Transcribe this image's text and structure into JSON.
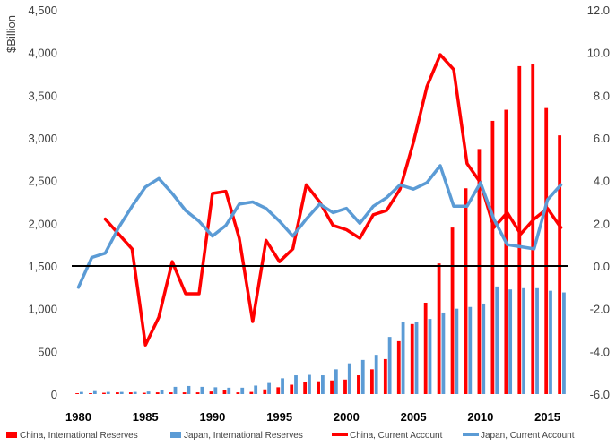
{
  "chart_data": {
    "type": "bar+line",
    "ylabel": "$Billion",
    "y_left_ticks": [
      "0",
      "500",
      "1,000",
      "1,500",
      "2,000",
      "2,500",
      "3,000",
      "3,500",
      "4,000",
      "4,500"
    ],
    "y_right_ticks": [
      "-6.0",
      "-4.0",
      "-2.0",
      "0.0",
      "2.0",
      "4.0",
      "6.0",
      "8.0",
      "10.0",
      "12.0"
    ],
    "x_ticks": [
      "1980",
      "1985",
      "1990",
      "1995",
      "2000",
      "2005",
      "2010",
      "2015"
    ],
    "ylim_left": [
      0,
      4500
    ],
    "ylim_right": [
      -6,
      12
    ],
    "xlim": [
      1979.5,
      2016.5
    ],
    "legend_position": "bottom",
    "colors": {
      "china": "#ff0000",
      "japan": "#5b9bd5",
      "zero_line": "#000000"
    },
    "years": [
      1980,
      1981,
      1982,
      1983,
      1984,
      1985,
      1986,
      1987,
      1988,
      1989,
      1990,
      1991,
      1992,
      1993,
      1994,
      1995,
      1996,
      1997,
      1998,
      1999,
      2000,
      2001,
      2002,
      2003,
      2004,
      2005,
      2006,
      2007,
      2008,
      2009,
      2010,
      2011,
      2012,
      2013,
      2014,
      2015,
      2016
    ],
    "bar_series": [
      {
        "name": "China, International Reserves",
        "axis": "left",
        "values": [
          10,
          10,
          15,
          20,
          20,
          15,
          20,
          20,
          20,
          20,
          30,
          45,
          20,
          25,
          55,
          80,
          110,
          145,
          150,
          160,
          170,
          220,
          290,
          410,
          620,
          820,
          1070,
          1530,
          1950,
          2410,
          2870,
          3200,
          3330,
          3840,
          3860,
          3350,
          3030
        ]
      },
      {
        "name": "Japan, International Reserves",
        "axis": "left",
        "values": [
          25,
          35,
          25,
          25,
          25,
          30,
          45,
          85,
          95,
          85,
          80,
          75,
          75,
          100,
          130,
          185,
          220,
          225,
          220,
          290,
          360,
          400,
          460,
          670,
          840,
          840,
          880,
          955,
          1000,
          1020,
          1060,
          1260,
          1225,
          1240,
          1240,
          1210,
          1190
        ]
      }
    ],
    "line_series": [
      {
        "name": "China, Current Account",
        "axis": "right",
        "values": [
          null,
          null,
          2.2,
          1.5,
          0.8,
          -3.7,
          -2.4,
          0.2,
          -1.3,
          -1.3,
          3.4,
          3.5,
          1.3,
          -2.6,
          1.2,
          0.2,
          0.8,
          3.8,
          3.0,
          1.9,
          1.7,
          1.3,
          2.4,
          2.6,
          3.6,
          5.8,
          8.4,
          9.9,
          9.2,
          4.8,
          3.9,
          1.8,
          2.5,
          1.5,
          2.2,
          2.7,
          1.8
        ]
      },
      {
        "name": "Japan, Current Account",
        "axis": "right",
        "values": [
          -1.0,
          0.4,
          0.6,
          1.8,
          2.8,
          3.7,
          4.1,
          3.4,
          2.6,
          2.1,
          1.4,
          1.9,
          2.9,
          3.0,
          2.7,
          2.1,
          1.4,
          2.2,
          2.9,
          2.5,
          2.7,
          2.0,
          2.8,
          3.2,
          3.8,
          3.6,
          3.9,
          4.7,
          2.8,
          2.8,
          3.9,
          2.2,
          1.0,
          0.9,
          0.8,
          3.1,
          3.8
        ]
      }
    ]
  }
}
